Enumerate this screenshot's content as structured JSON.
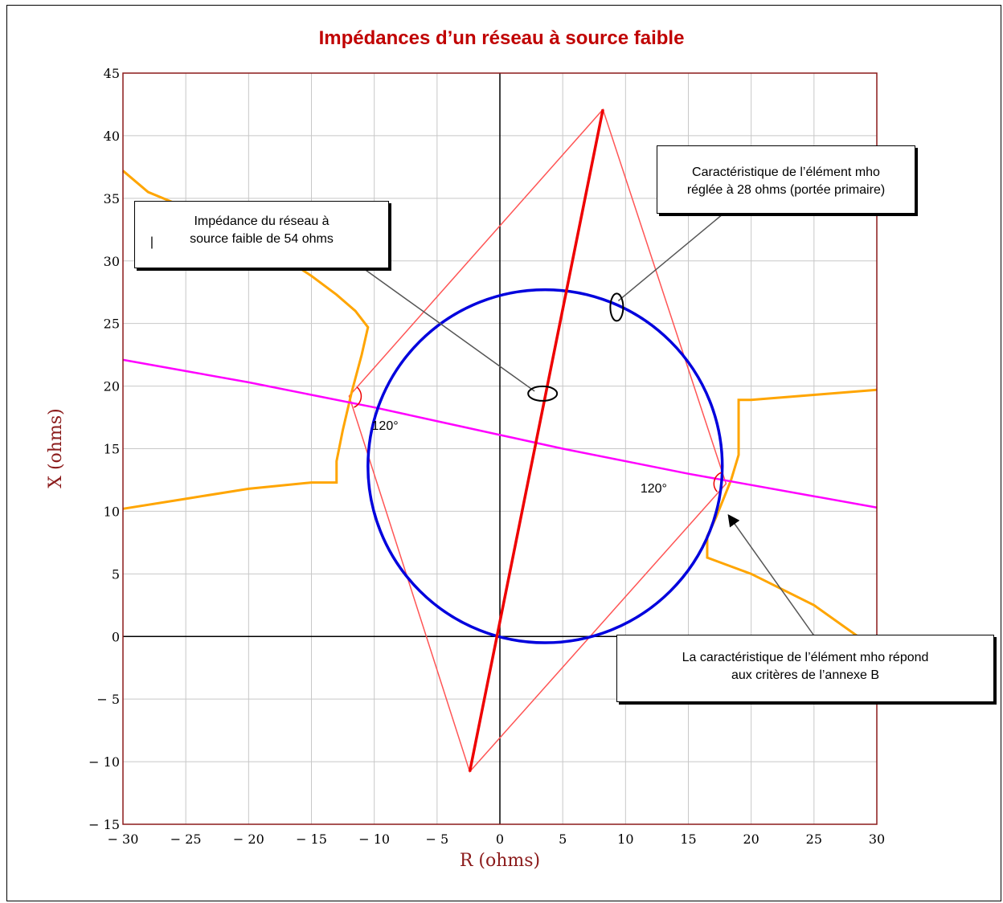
{
  "chart_data": {
    "type": "line",
    "title": "Impédances d’un réseau à source faible",
    "xlabel": "R (ohms)",
    "ylabel": "X (ohms)",
    "xlim": [
      -30,
      30
    ],
    "ylim": [
      -15,
      45
    ],
    "grid": true,
    "x_ticks": [
      "− 30",
      "− 25",
      "− 20",
      "− 15",
      "− 10",
      "− 5",
      "0",
      "5",
      "10",
      "15",
      "20",
      "25",
      "30"
    ],
    "y_ticks": [
      "45",
      "40",
      "35",
      "30",
      "25",
      "20",
      "15",
      "10",
      "5",
      "0",
      "− 5",
      "− 10",
      "− 15"
    ],
    "colors": {
      "frame": "#8b1a1a",
      "grid": "#c8c8c8",
      "mho_circle": "#0000dd",
      "line_angle": "#ee0000",
      "parallelogram": "#ff5555",
      "load_line": "#ff00ff",
      "impedance_locus": "#ffa500",
      "axes": "#000000"
    },
    "series": [
      {
        "kind": "circle",
        "center": [
          3.6,
          13.6
        ],
        "radius": 14.1
      },
      {
        "kind": "line",
        "x": [
          -2.4,
          8.2
        ],
        "y": [
          -10.8,
          42.1
        ]
      },
      {
        "kind": "polygon",
        "x": [
          -2.4,
          -12,
          8.2,
          18,
          -2.4
        ],
        "y": [
          -10.8,
          19.2,
          42.1,
          12.2,
          -10.8
        ]
      },
      {
        "kind": "line",
        "x": [
          -30,
          -25,
          -20,
          -15,
          -10,
          -5,
          0,
          5,
          10,
          15,
          20,
          25,
          30
        ],
        "y": [
          22.1,
          21.2,
          20.3,
          19.3,
          18.3,
          17.2,
          16.1,
          15.0,
          14.0,
          13.0,
          12.1,
          11.2,
          10.3
        ]
      },
      {
        "kind": "line",
        "x": [
          -30,
          -28,
          -22,
          -18,
          -15,
          -13,
          -11.5,
          -10.5,
          -11,
          -11.8,
          -12.5,
          -13,
          -13,
          -15,
          -20,
          -25,
          -30
        ],
        "y": [
          37.2,
          35.5,
          33.0,
          30.8,
          28.8,
          27.3,
          26.0,
          24.7,
          22.5,
          19.5,
          16.5,
          14.0,
          12.3,
          12.3,
          11.8,
          11.0,
          10.2
        ]
      },
      {
        "kind": "line",
        "x": [
          30,
          25,
          20,
          19,
          19,
          18.4,
          17.8,
          17.2,
          16.5,
          16.5,
          20,
          25,
          28.5
        ],
        "y": [
          19.7,
          19.3,
          18.9,
          18.9,
          14.5,
          12.5,
          11.0,
          9.5,
          8.0,
          6.3,
          5.0,
          2.5,
          0
        ]
      }
    ],
    "annotations": [
      {
        "text": "120°",
        "x": -10.2,
        "y": 16.5
      },
      {
        "text": "120°",
        "x": 13.3,
        "y": 11.5
      }
    ],
    "callouts": [
      {
        "lines": [
          "Impédance du réseau à",
          "source faible de 54 ohms"
        ],
        "target": [
          3.4,
          19.4
        ]
      },
      {
        "lines": [
          "Caractéristique de l’élément mho",
          "réglée à 28 ohms (portée primaire)"
        ],
        "target": [
          9.3,
          26.3
        ]
      },
      {
        "lines": [
          "La caractéristique de l’élément mho répond",
          "aux critères de l’annexe B"
        ],
        "target": [
          17.8,
          10.0
        ]
      }
    ],
    "cursor_mark": "|"
  }
}
